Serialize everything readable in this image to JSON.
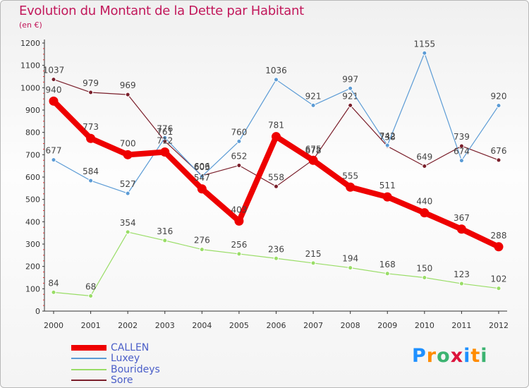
{
  "header": {
    "title": "Evolution du Montant de la Dette par Habitant",
    "subtitle": "(en €)"
  },
  "logo": {
    "text": "Proxiti",
    "colors": [
      "#1e90ff",
      "#ff8c00",
      "#3cb371",
      "#dc143c",
      "#1e90ff",
      "#ff8c00",
      "#3cb371"
    ]
  },
  "chart_data": {
    "type": "line",
    "title": "Evolution du Montant de la Dette par Habitant",
    "subtitle": "(en €)",
    "xlabel": "",
    "ylabel": "",
    "ylim": [
      0,
      1200
    ],
    "yticks": [
      0,
      100,
      200,
      300,
      400,
      500,
      600,
      700,
      800,
      900,
      1000,
      1100,
      1200
    ],
    "grid": false,
    "legend_position": "bottom-left",
    "categories": [
      "2000",
      "2001",
      "2002",
      "2003",
      "2004",
      "2005",
      "2006",
      "2007",
      "2008",
      "2009",
      "2010",
      "2011",
      "2012"
    ],
    "series": [
      {
        "name": "CALLEN",
        "color": "#ee0000",
        "values": [
          940,
          773,
          700,
          712,
          547,
          403,
          781,
          675,
          555,
          511,
          440,
          367,
          288
        ]
      },
      {
        "name": "Luxey",
        "color": "#5b9bd5",
        "values": [
          677,
          584,
          527,
          776,
          603,
          760,
          1036,
          921,
          997,
          742,
          1155,
          674,
          920
        ]
      },
      {
        "name": "Bourideys",
        "color": "#99dd66",
        "values": [
          84,
          68,
          354,
          316,
          276,
          256,
          236,
          215,
          194,
          168,
          150,
          123,
          102
        ]
      },
      {
        "name": "Sore",
        "color": "#7a1f2b",
        "values": [
          1037,
          979,
          969,
          761,
          606,
          652,
          558,
          678,
          921,
          738,
          649,
          739,
          676
        ]
      }
    ]
  }
}
